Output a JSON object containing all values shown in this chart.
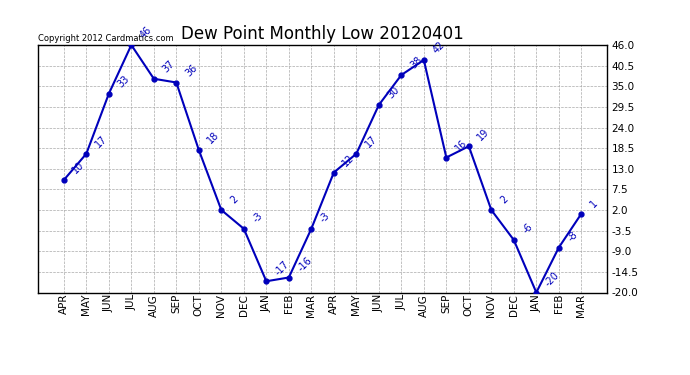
{
  "title": "Dew Point Monthly Low 20120401",
  "copyright": "Copyright 2012 Cardmatics.com",
  "months": [
    "APR",
    "MAY",
    "JUN",
    "JUL",
    "AUG",
    "SEP",
    "OCT",
    "NOV",
    "DEC",
    "JAN",
    "FEB",
    "MAR",
    "APR",
    "MAY",
    "JUN",
    "JUL",
    "AUG",
    "SEP",
    "OCT",
    "NOV",
    "DEC",
    "JAN",
    "FEB",
    "MAR"
  ],
  "values": [
    10,
    17,
    33,
    46,
    37,
    36,
    18,
    2,
    -3,
    -17,
    -16,
    -3,
    12,
    17,
    30,
    38,
    42,
    16,
    19,
    2,
    -6,
    -20,
    -8,
    1
  ],
  "line_color": "#0000bb",
  "marker_color": "#0000bb",
  "bg_color": "#ffffff",
  "grid_color": "#aaaaaa",
  "ylim_min": -20.0,
  "ylim_max": 46.0,
  "yticks": [
    -20.0,
    -14.5,
    -9.0,
    -3.5,
    2.0,
    7.5,
    13.0,
    18.5,
    24.0,
    29.5,
    35.0,
    40.5,
    46.0
  ],
  "title_fontsize": 12,
  "label_fontsize": 7,
  "tick_fontsize": 7.5
}
